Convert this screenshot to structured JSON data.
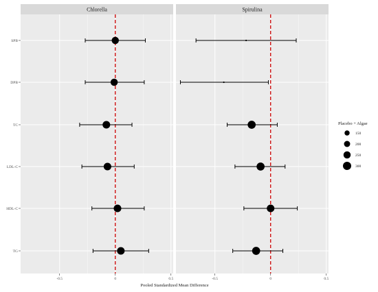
{
  "chart_data": {
    "type": "forest",
    "xlabel": "Pooled Standardized Mean Difference",
    "ylabel": "",
    "xlim": [
      -0.85,
      0.52
    ],
    "x_ticks": [
      -0.5,
      0,
      0.5
    ],
    "x_tick_labels": [
      "-0.5",
      "0",
      "0.5"
    ],
    "reference_line": {
      "x": 0,
      "style": "dashed",
      "color": "#cc0000"
    },
    "outcomes": [
      "SPB",
      "DPB",
      "TC",
      "LDL-C",
      "HDL-C",
      "TG"
    ],
    "panels": [
      {
        "name": "Chlorella",
        "estimates": [
          {
            "outcome": "SPB",
            "mean": 0.0,
            "lower": -0.27,
            "upper": 0.27,
            "n": 250
          },
          {
            "outcome": "DPB",
            "mean": -0.01,
            "lower": -0.27,
            "upper": 0.26,
            "n": 250
          },
          {
            "outcome": "TC",
            "mean": -0.08,
            "lower": -0.32,
            "upper": 0.15,
            "n": 270
          },
          {
            "outcome": "LDL-C",
            "mean": -0.07,
            "lower": -0.3,
            "upper": 0.17,
            "n": 270
          },
          {
            "outcome": "HDL-C",
            "mean": 0.02,
            "lower": -0.21,
            "upper": 0.26,
            "n": 270
          },
          {
            "outcome": "TG",
            "mean": 0.05,
            "lower": -0.2,
            "upper": 0.3,
            "n": 270
          }
        ]
      },
      {
        "name": "Spirulina",
        "estimates": [
          {
            "outcome": "SPB",
            "mean": -0.22,
            "lower": -0.67,
            "upper": 0.23,
            "n": 50
          },
          {
            "outcome": "DPB",
            "mean": -0.42,
            "lower": -0.81,
            "upper": -0.02,
            "n": 50
          },
          {
            "outcome": "TC",
            "mean": -0.17,
            "lower": -0.39,
            "upper": 0.06,
            "n": 290
          },
          {
            "outcome": "LDL-C",
            "mean": -0.09,
            "lower": -0.32,
            "upper": 0.13,
            "n": 290
          },
          {
            "outcome": "HDL-C",
            "mean": 0.0,
            "lower": -0.24,
            "upper": 0.24,
            "n": 270
          },
          {
            "outcome": "TG",
            "mean": -0.13,
            "lower": -0.34,
            "upper": 0.11,
            "n": 290
          }
        ]
      }
    ],
    "legend": {
      "title": "Placebo + Algae",
      "position": "right",
      "entries": [
        {
          "label": "150",
          "value": 150
        },
        {
          "label": "200",
          "value": 200
        },
        {
          "label": "250",
          "value": 250
        },
        {
          "label": "300",
          "value": 300
        }
      ]
    },
    "colors": {
      "panel_bg": "#ebebeb",
      "strip_bg": "#d9d9d9",
      "grid": "#ffffff",
      "point": "#000000",
      "reference": "#cc0000"
    }
  }
}
